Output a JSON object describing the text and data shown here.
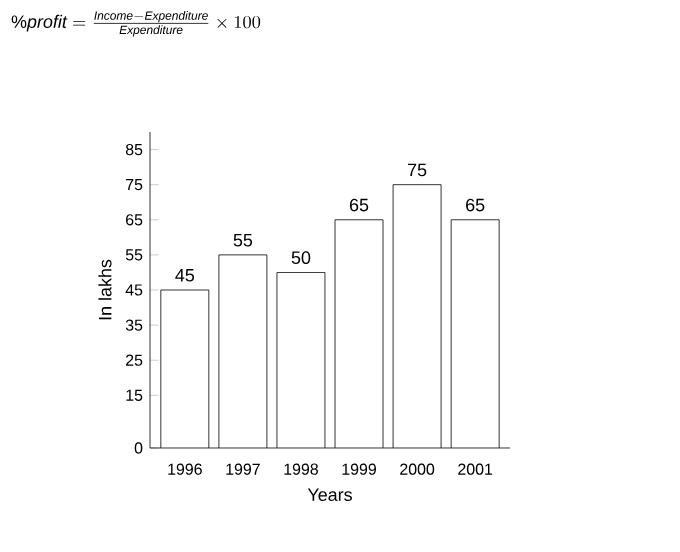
{
  "chart_data": {
    "type": "bar",
    "title": "\\%\\mathit{profit}=\\frac{\\mathit{Income}-\\mathit{Expenditure}}{\\mathit{Expenditure}}\\times 100",
    "xlabel": "Years",
    "ylabel": "In lakhs",
    "categories": [
      "1996",
      "1997",
      "1998",
      "1999",
      "2000",
      "2001"
    ],
    "values": [
      45,
      55,
      50,
      65,
      75,
      65
    ],
    "color": "#ffffff",
    "ylim": [
      0,
      90
    ],
    "yticks": [
      0,
      15,
      25,
      35,
      45,
      55,
      65,
      75,
      85
    ],
    "data_labels": true,
    "grid": false
  }
}
